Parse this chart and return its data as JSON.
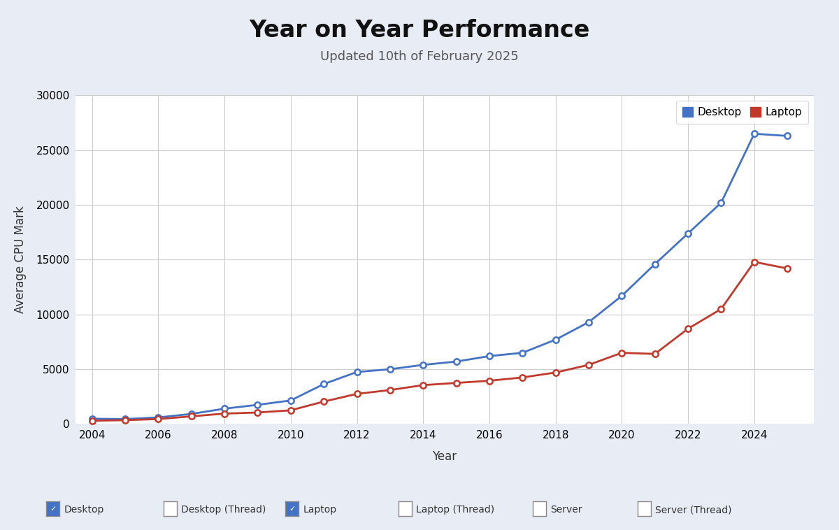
{
  "title": "Year on Year Performance",
  "subtitle": "Updated 10th of February 2025",
  "xlabel": "Year",
  "ylabel": "Average CPU Mark",
  "background_color": "#e8edf5",
  "plot_bg_color": "#ffffff",
  "years": [
    2004,
    2005,
    2006,
    2007,
    2008,
    2009,
    2010,
    2011,
    2012,
    2013,
    2014,
    2015,
    2016,
    2017,
    2018,
    2019,
    2020,
    2021,
    2022,
    2023,
    2024,
    2025
  ],
  "desktop": [
    480,
    450,
    600,
    920,
    1400,
    1750,
    2150,
    3650,
    4750,
    5000,
    5400,
    5700,
    6200,
    6500,
    7700,
    9300,
    11700,
    14600,
    17400,
    20200,
    26500,
    26300
  ],
  "laptop": [
    300,
    350,
    450,
    700,
    950,
    1050,
    1250,
    2050,
    2750,
    3100,
    3550,
    3750,
    3950,
    4250,
    4700,
    5400,
    6500,
    6400,
    8700,
    10500,
    14800,
    14200
  ],
  "desktop_color": "#4472c4",
  "laptop_color": "#c0392b",
  "ylim": [
    0,
    30000
  ],
  "xlim": [
    2003.5,
    2025.8
  ],
  "yticks": [
    0,
    5000,
    10000,
    15000,
    20000,
    25000,
    30000
  ],
  "xticks": [
    2004,
    2006,
    2008,
    2010,
    2012,
    2014,
    2016,
    2018,
    2020,
    2022,
    2024
  ],
  "title_fontsize": 24,
  "subtitle_fontsize": 13,
  "axis_label_fontsize": 12,
  "tick_fontsize": 11,
  "legend_items": [
    "Desktop",
    "Laptop"
  ],
  "bottom_legend": [
    "Desktop",
    "Desktop (Thread)",
    "Laptop",
    "Laptop (Thread)",
    "Server",
    "Server (Thread)"
  ],
  "bottom_checked": [
    true,
    false,
    true,
    false,
    false,
    false
  ],
  "bottom_check_colors": [
    "#4472c4",
    "#ffffff",
    "#4472c4",
    "#ffffff",
    "#ffffff",
    "#ffffff"
  ]
}
